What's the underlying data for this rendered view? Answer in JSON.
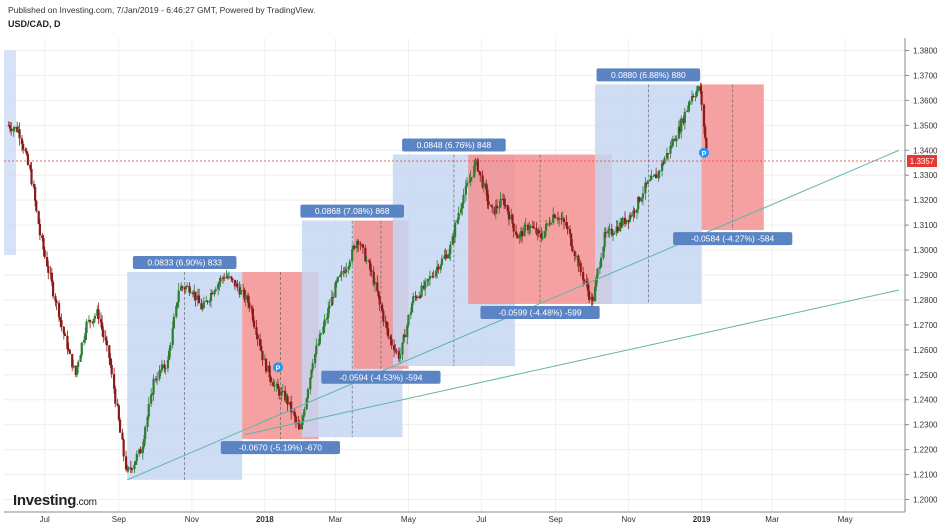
{
  "header": {
    "published_text": "Published on Investing.com, 7/Jan/2019 - 6:46:27 GMT, Powered by TradingView.",
    "symbol": "USD/CAD, D"
  },
  "logo": {
    "brand": "Investing",
    "suffix": ".com"
  },
  "colors": {
    "up_candle": "#2e7d32",
    "down_candle": "#8b1a1a",
    "gain_box": "#c5d6f2",
    "loss_box": "#f59090",
    "label_bg": "#5b84c4",
    "trendline": "#5fb5a8",
    "price_line": "#e53935"
  },
  "chart_data": {
    "type": "candlestick",
    "xaxis": {
      "ticks": [
        "Jul",
        "Sep",
        "Nov",
        "2018",
        "Mar",
        "May",
        "Jul",
        "Sep",
        "Nov",
        "2019",
        "Mar",
        "May"
      ]
    },
    "yaxis": {
      "range": [
        1.195,
        1.385
      ],
      "ticks": [
        "1.3800",
        "1.3700",
        "1.3600",
        "1.3500",
        "1.3400",
        "1.3300",
        "1.3200",
        "1.3100",
        "1.3000",
        "1.2900",
        "1.2800",
        "1.2700",
        "1.2600",
        "1.2500",
        "1.2400",
        "1.2300",
        "1.2200",
        "1.2100",
        "1.2000"
      ]
    },
    "current_price": {
      "label": "1.3357",
      "value": 1.3357
    },
    "path_points": [
      [
        "2017-06-01",
        1.35
      ],
      [
        "2017-06-10",
        1.348
      ],
      [
        "2017-06-20",
        1.33
      ],
      [
        "2017-06-28",
        1.305
      ],
      [
        "2017-07-08",
        1.285
      ],
      [
        "2017-07-18",
        1.265
      ],
      [
        "2017-07-27",
        1.25
      ],
      [
        "2017-08-05",
        1.27
      ],
      [
        "2017-08-15",
        1.275
      ],
      [
        "2017-08-25",
        1.255
      ],
      [
        "2017-09-08",
        1.21
      ],
      [
        "2017-09-20",
        1.22
      ],
      [
        "2017-10-01",
        1.248
      ],
      [
        "2017-10-12",
        1.255
      ],
      [
        "2017-10-22",
        1.285
      ],
      [
        "2017-11-01",
        1.285
      ],
      [
        "2017-11-10",
        1.276
      ],
      [
        "2017-11-20",
        1.285
      ],
      [
        "2017-11-29",
        1.29
      ],
      [
        "2017-12-10",
        1.285
      ],
      [
        "2017-12-20",
        1.278
      ],
      [
        "2018-01-01",
        1.255
      ],
      [
        "2018-01-10",
        1.245
      ],
      [
        "2018-01-20",
        1.24
      ],
      [
        "2018-01-31",
        1.227
      ],
      [
        "2018-02-10",
        1.255
      ],
      [
        "2018-02-20",
        1.27
      ],
      [
        "2018-03-01",
        1.285
      ],
      [
        "2018-03-12",
        1.295
      ],
      [
        "2018-03-20",
        1.305
      ],
      [
        "2018-04-01",
        1.29
      ],
      [
        "2018-04-15",
        1.265
      ],
      [
        "2018-04-24",
        1.257
      ],
      [
        "2018-05-05",
        1.28
      ],
      [
        "2018-05-15",
        1.285
      ],
      [
        "2018-05-25",
        1.293
      ],
      [
        "2018-06-05",
        1.3
      ],
      [
        "2018-06-15",
        1.32
      ],
      [
        "2018-06-27",
        1.335
      ],
      [
        "2018-07-10",
        1.315
      ],
      [
        "2018-07-20",
        1.32
      ],
      [
        "2018-08-01",
        1.305
      ],
      [
        "2018-08-10",
        1.31
      ],
      [
        "2018-08-20",
        1.305
      ],
      [
        "2018-08-31",
        1.315
      ],
      [
        "2018-09-10",
        1.31
      ],
      [
        "2018-09-20",
        1.295
      ],
      [
        "2018-10-02",
        1.279
      ],
      [
        "2018-10-12",
        1.305
      ],
      [
        "2018-10-25",
        1.31
      ],
      [
        "2018-11-05",
        1.315
      ],
      [
        "2018-11-15",
        1.325
      ],
      [
        "2018-11-25",
        1.33
      ],
      [
        "2018-12-05",
        1.34
      ],
      [
        "2018-12-15",
        1.35
      ],
      [
        "2018-12-24",
        1.362
      ],
      [
        "2018-12-31",
        1.365
      ],
      [
        "2019-01-03",
        1.35
      ],
      [
        "2019-01-07",
        1.3357
      ]
    ],
    "measure_boxes": [
      {
        "direction": "up",
        "start": "2017-09-08",
        "end": "2017-12-13",
        "low": 1.2079,
        "high": 1.2912,
        "label": "0.0833 (6.90%) 833"
      },
      {
        "direction": "down",
        "start": "2017-12-13",
        "end": "2018-02-15",
        "low": 1.2242,
        "high": 1.2912,
        "label": "-0.0670 (-5.19%) -670"
      },
      {
        "direction": "up",
        "start": "2018-02-01",
        "end": "2018-04-26",
        "low": 1.225,
        "high": 1.3118,
        "label": "0.0868 (7.08%) 868"
      },
      {
        "direction": "down",
        "start": "2018-03-16",
        "end": "2018-05-01",
        "low": 1.2524,
        "high": 1.3118,
        "label": "-0.0594 (-4.53%) -594"
      },
      {
        "direction": "up",
        "start": "2018-04-18",
        "end": "2018-07-29",
        "low": 1.2535,
        "high": 1.3383,
        "label": "0.0848 (6.76%) 848"
      },
      {
        "direction": "down",
        "start": "2018-06-20",
        "end": "2018-10-18",
        "low": 1.2784,
        "high": 1.3383,
        "label": "-0.0599 (-4.48%) -599"
      },
      {
        "direction": "up",
        "start": "2018-10-04",
        "end": "2019-01-01",
        "low": 1.2784,
        "high": 1.3664,
        "label": "0.0880 (6.88%) 880"
      },
      {
        "direction": "down",
        "start": "2019-01-01",
        "end": "2019-02-22",
        "low": 1.308,
        "high": 1.3664,
        "label": "-0.0584 (-4.27%) -584"
      }
    ],
    "trendlines": [
      {
        "from": [
          "2017-09-08",
          1.2079
        ],
        "to": [
          "2019-06-15",
          1.34
        ]
      },
      {
        "from": [
          "2017-12-15",
          1.226
        ],
        "to": [
          "2019-06-15",
          1.284
        ]
      }
    ],
    "markers": [
      {
        "date": "2018-01-12",
        "value": 1.253,
        "label": "P"
      },
      {
        "date": "2019-01-03",
        "value": 1.339,
        "label": "P"
      }
    ]
  }
}
